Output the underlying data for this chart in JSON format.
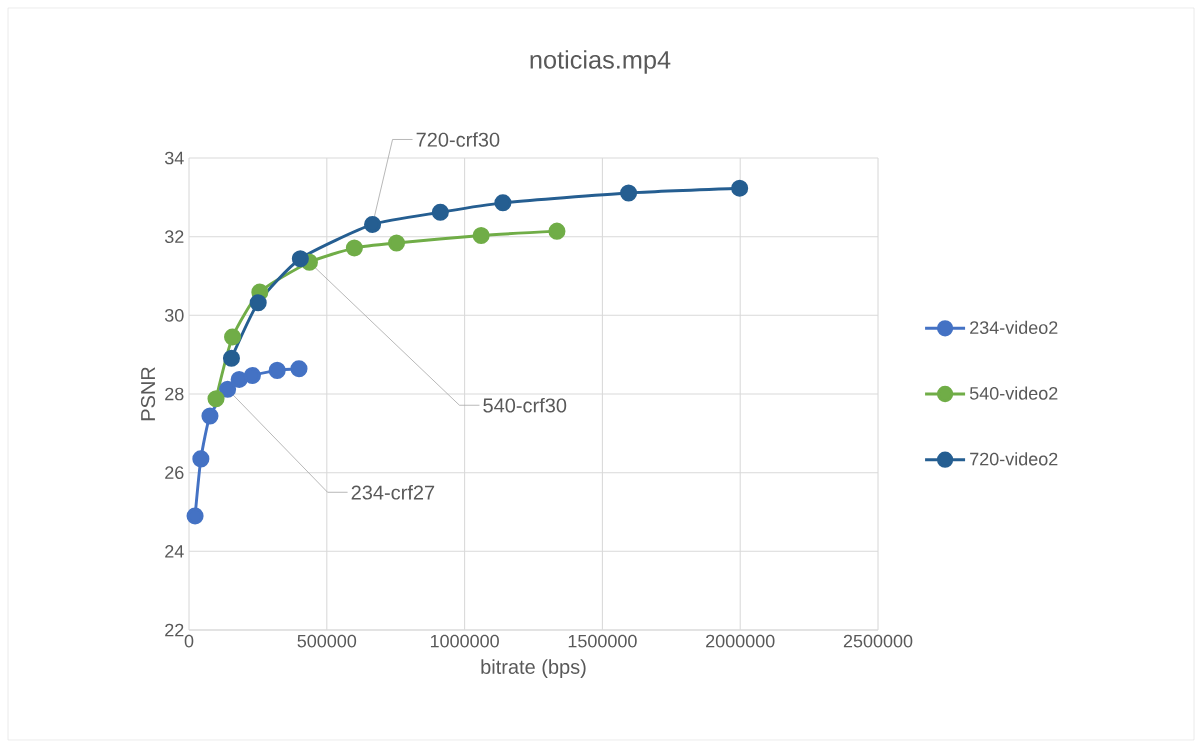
{
  "chart_data": {
    "type": "line",
    "title": "noticias.mp4",
    "xlabel": "bitrate (bps)",
    "ylabel": "PSNR",
    "xlim": [
      0,
      2500000
    ],
    "xticks": [
      0,
      500000,
      1000000,
      1500000,
      2000000,
      2500000
    ],
    "ylim": [
      22,
      34
    ],
    "yticks": [
      22,
      24,
      26,
      28,
      30,
      32,
      34
    ],
    "grid": true,
    "legend": "right",
    "marker": "circle",
    "line_style": "solid",
    "series": [
      {
        "name": "234-video2",
        "color": "#4472c4",
        "x": [
          22000,
          43000,
          76000,
          140000,
          182000,
          230000,
          320000,
          399000
        ],
        "values": [
          24.9,
          26.35,
          27.44,
          28.12,
          28.37,
          28.47,
          28.6,
          28.64
        ]
      },
      {
        "name": "540-video2",
        "color": "#70ad47",
        "x": [
          98000,
          158000,
          257000,
          437000,
          600000,
          753000,
          1060000,
          1335000
        ],
        "values": [
          27.88,
          29.45,
          30.59,
          31.35,
          31.71,
          31.84,
          32.03,
          32.14
        ]
      },
      {
        "name": "720-video2",
        "color": "#255e91",
        "x": [
          154000,
          251000,
          404000,
          666000,
          912000,
          1139000,
          1595000,
          1998000
        ],
        "values": [
          28.91,
          30.32,
          31.44,
          32.31,
          32.62,
          32.86,
          33.11,
          33.23
        ]
      }
    ],
    "annotations": [
      {
        "text": "720-crf30",
        "x": 666000,
        "y": 32.31
      },
      {
        "text": "540-crf30",
        "x": 437000,
        "y": 31.35
      },
      {
        "text": "234-crf27",
        "x": 140000,
        "y": 28.12
      }
    ]
  }
}
